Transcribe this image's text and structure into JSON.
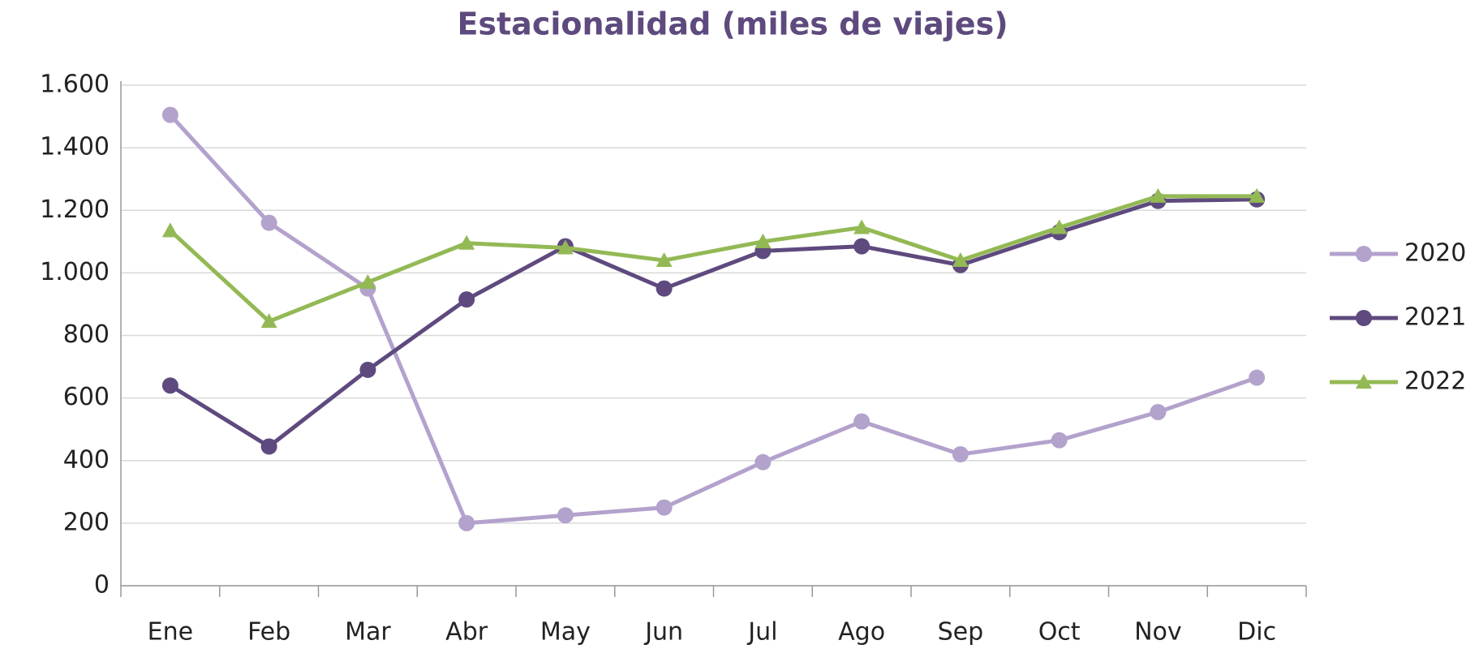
{
  "chart_data": {
    "type": "line",
    "title": "Estacionalidad (miles de viajes)",
    "title_color": "#5e4a7e",
    "categories": [
      "Ene",
      "Feb",
      "Mar",
      "Abr",
      "May",
      "Jun",
      "Jul",
      "Ago",
      "Sep",
      "Oct",
      "Nov",
      "Dic"
    ],
    "series": [
      {
        "name": "2020",
        "color": "#b3a2cc",
        "marker": "circle",
        "values": [
          1505,
          1160,
          950,
          200,
          225,
          250,
          395,
          525,
          420,
          465,
          555,
          665
        ]
      },
      {
        "name": "2021",
        "color": "#5e4a7e",
        "marker": "circle",
        "values": [
          640,
          445,
          690,
          915,
          1085,
          950,
          1070,
          1085,
          1025,
          1130,
          1230,
          1235
        ]
      },
      {
        "name": "2022",
        "color": "#93b955",
        "marker": "triangle",
        "values": [
          1135,
          845,
          970,
          1095,
          1080,
          1040,
          1100,
          1145,
          1040,
          1145,
          1245,
          1245
        ]
      }
    ],
    "ylim": [
      0,
      1600
    ],
    "yticks": [
      0,
      200,
      400,
      600,
      800,
      {
        "value": 1000,
        "label": "1.000"
      },
      {
        "value": 1200,
        "label": "1.200"
      },
      {
        "value": 1400,
        "label": "1.400"
      },
      {
        "value": 1600,
        "label": "1.600"
      }
    ],
    "grid": true,
    "legend": "right"
  }
}
